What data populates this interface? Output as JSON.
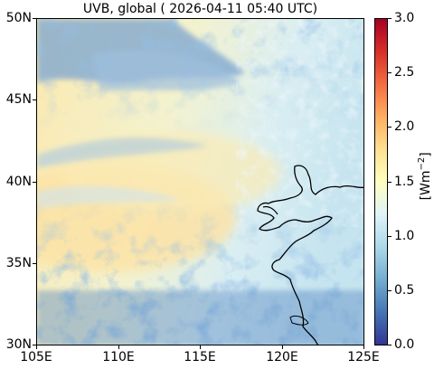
{
  "title": "UVB, global ( 2026-04-11 05:40 UTC)",
  "map": {
    "lon_ticks": [
      "105E",
      "110E",
      "115E",
      "120E",
      "125E"
    ],
    "lat_ticks": [
      "50N",
      "45N",
      "40N",
      "35N",
      "30N"
    ],
    "extent": {
      "lon": [
        105,
        125
      ],
      "lat": [
        30,
        50
      ]
    }
  },
  "colorbar": {
    "label": "[Wm",
    "label_sup": "−2",
    "label_end": "]",
    "ticks": [
      "3.0",
      "2.5",
      "2.0",
      "1.5",
      "1.0",
      "0.5",
      "0.0"
    ],
    "range": [
      0,
      3
    ],
    "colormap": "RdYlBu_r",
    "colors": [
      "#313695",
      "#4575b4",
      "#74add1",
      "#abd9e9",
      "#e0f3f8",
      "#ffffbf",
      "#fee090",
      "#fdae61",
      "#f46d43",
      "#d73027",
      "#a50026"
    ]
  }
}
